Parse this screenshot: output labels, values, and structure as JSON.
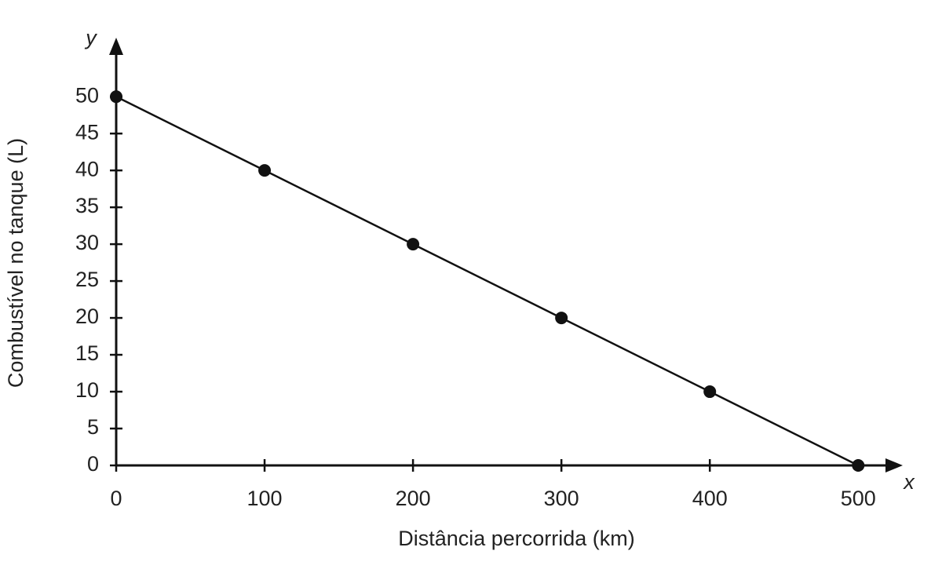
{
  "chart_data": {
    "type": "line",
    "x_axis_name": "x",
    "y_axis_name": "y",
    "x_label": "Distância percorrida (km)",
    "y_label": "Combustível no tanque (L)",
    "x": [
      0,
      100,
      200,
      300,
      400,
      500
    ],
    "series": [
      {
        "color": "#111111",
        "values": [
          50,
          40,
          30,
          20,
          10,
          0
        ]
      }
    ],
    "xlim": [
      0,
      530
    ],
    "ylim": [
      0,
      58
    ],
    "xticks": [
      0,
      100,
      200,
      300,
      400,
      500
    ],
    "yticks": [
      0,
      5,
      10,
      15,
      20,
      25,
      30,
      35,
      40,
      45,
      50
    ],
    "grid": false,
    "markers": true
  }
}
